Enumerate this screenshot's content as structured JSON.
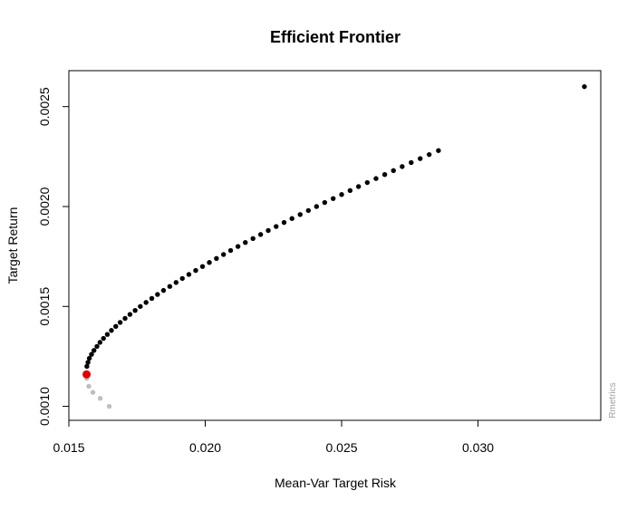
{
  "chart_data": {
    "type": "scatter",
    "title": "Efficient Frontier",
    "xlabel": "Mean-Var Target Risk",
    "ylabel": "Target Return",
    "xlim": [
      0.015,
      0.0345
    ],
    "ylim": [
      0.00093,
      0.00268
    ],
    "x_ticks": [
      0.015,
      0.02,
      0.025,
      0.03
    ],
    "x_tick_labels": [
      "0.015",
      "0.020",
      "0.025",
      "0.030"
    ],
    "y_ticks": [
      0.001,
      0.0015,
      0.002,
      0.0025
    ],
    "y_tick_labels": [
      "0.0010",
      "0.0015",
      "0.0020",
      "0.0025"
    ],
    "grid": false,
    "watermark": "Rmetrics",
    "series": [
      {
        "color": "#000000",
        "points": [
          [
            0.01566,
            0.0012
          ],
          [
            0.0157,
            0.00122
          ],
          [
            0.01575,
            0.00124
          ],
          [
            0.01583,
            0.00126
          ],
          [
            0.01592,
            0.00128
          ],
          [
            0.01603,
            0.0013
          ],
          [
            0.01614,
            0.00132
          ],
          [
            0.01627,
            0.00134
          ],
          [
            0.01641,
            0.00136
          ],
          [
            0.01656,
            0.00138
          ],
          [
            0.01672,
            0.0014
          ],
          [
            0.01688,
            0.00142
          ],
          [
            0.01706,
            0.00144
          ],
          [
            0.01724,
            0.00146
          ],
          [
            0.01743,
            0.00148
          ],
          [
            0.01762,
            0.0015
          ],
          [
            0.01783,
            0.00152
          ],
          [
            0.01804,
            0.00154
          ],
          [
            0.01825,
            0.00156
          ],
          [
            0.01847,
            0.00158
          ],
          [
            0.0187,
            0.0016
          ],
          [
            0.01893,
            0.00162
          ],
          [
            0.01916,
            0.00164
          ],
          [
            0.0194,
            0.00166
          ],
          [
            0.01965,
            0.00168
          ],
          [
            0.0199,
            0.0017
          ],
          [
            0.02015,
            0.00172
          ],
          [
            0.02041,
            0.00174
          ],
          [
            0.02067,
            0.00176
          ],
          [
            0.02093,
            0.00178
          ],
          [
            0.0212,
            0.0018
          ],
          [
            0.02147,
            0.00182
          ],
          [
            0.02175,
            0.00184
          ],
          [
            0.02203,
            0.00186
          ],
          [
            0.02231,
            0.00188
          ],
          [
            0.0226,
            0.0019
          ],
          [
            0.02289,
            0.00192
          ],
          [
            0.02318,
            0.00194
          ],
          [
            0.02348,
            0.00196
          ],
          [
            0.02378,
            0.00198
          ],
          [
            0.02408,
            0.002
          ],
          [
            0.02438,
            0.00202
          ],
          [
            0.02469,
            0.00204
          ],
          [
            0.025,
            0.00206
          ],
          [
            0.02531,
            0.00208
          ],
          [
            0.02562,
            0.0021
          ],
          [
            0.02594,
            0.00212
          ],
          [
            0.02626,
            0.00214
          ],
          [
            0.02658,
            0.00216
          ],
          [
            0.0269,
            0.00218
          ],
          [
            0.02722,
            0.0022
          ],
          [
            0.02755,
            0.00222
          ],
          [
            0.02788,
            0.00224
          ],
          [
            0.02821,
            0.00226
          ],
          [
            0.02855,
            0.00228
          ],
          [
            0.0339,
            0.0026
          ]
        ]
      },
      {
        "color": "#bebebe",
        "points": [
          [
            0.01566,
            0.00114
          ],
          [
            0.01573,
            0.0011
          ],
          [
            0.01588,
            0.00107
          ],
          [
            0.01615,
            0.00104
          ],
          [
            0.01648,
            0.001
          ]
        ]
      },
      {
        "color": "#e00000",
        "points": [
          [
            0.01565,
            0.00116
          ]
        ]
      }
    ]
  }
}
